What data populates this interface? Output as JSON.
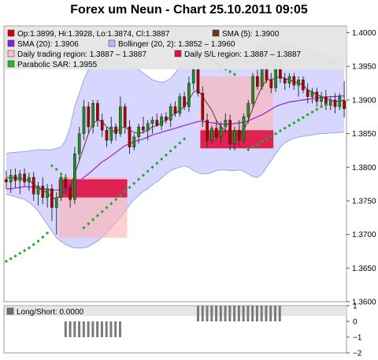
{
  "chart_data": [
    {
      "type": "candlestick",
      "title": "Forex um Neun - Chart 25.10.2011 09:05",
      "ylim": [
        1.36,
        1.401
      ],
      "y_ticks": [
        "1.4000",
        "1.3950",
        "1.3900",
        "1.3850",
        "1.3800",
        "1.3750",
        "1.3700",
        "1.3650",
        "1.3600"
      ],
      "y_tick_values": [
        1.4,
        1.395,
        1.39,
        1.385,
        1.38,
        1.375,
        1.37,
        1.365,
        1.36
      ],
      "grid": false,
      "legend_position": "top",
      "legend": [
        {
          "label": "Op:1.3899, Hi:1.3928, Lo:1.3874, Cl:1.3887",
          "color": "#cc0000",
          "kind": "box"
        },
        {
          "label": "SMA (5): 1.3900",
          "color": "#6b3a1f",
          "kind": "box"
        },
        {
          "label": "SMA (20): 1.3906",
          "color": "#8a1fd0",
          "kind": "box"
        },
        {
          "label": "Bollinger (20, 2): 1.3852 – 1.3960",
          "color": "#b8b8ff",
          "kind": "box"
        },
        {
          "label": "Daily trading region: 1.3887 – 1.3887",
          "color": "#ffc0c0",
          "kind": "box"
        },
        {
          "label": "Daily S/L region: 1.3887 – 1.3887",
          "color": "#dd1144",
          "kind": "box"
        },
        {
          "label": "Parabolic SAR: 1.3955",
          "color": "#22bb22",
          "kind": "box"
        }
      ],
      "candles": [
        {
          "o": 1.3782,
          "h": 1.3795,
          "l": 1.3768,
          "c": 1.3778
        },
        {
          "o": 1.3778,
          "h": 1.3797,
          "l": 1.3762,
          "c": 1.3788
        },
        {
          "o": 1.3788,
          "h": 1.3798,
          "l": 1.377,
          "c": 1.378
        },
        {
          "o": 1.378,
          "h": 1.3796,
          "l": 1.376,
          "c": 1.379
        },
        {
          "o": 1.379,
          "h": 1.3798,
          "l": 1.3772,
          "c": 1.3778
        },
        {
          "o": 1.3778,
          "h": 1.3792,
          "l": 1.3765,
          "c": 1.3785
        },
        {
          "o": 1.3785,
          "h": 1.3793,
          "l": 1.375,
          "c": 1.376
        },
        {
          "o": 1.376,
          "h": 1.3778,
          "l": 1.3743,
          "c": 1.3772
        },
        {
          "o": 1.3772,
          "h": 1.3785,
          "l": 1.3745,
          "c": 1.3755
        },
        {
          "o": 1.3755,
          "h": 1.3775,
          "l": 1.374,
          "c": 1.3768
        },
        {
          "o": 1.3768,
          "h": 1.3775,
          "l": 1.372,
          "c": 1.374
        },
        {
          "o": 1.374,
          "h": 1.3763,
          "l": 1.37,
          "c": 1.3755
        },
        {
          "o": 1.3755,
          "h": 1.379,
          "l": 1.375,
          "c": 1.3785
        },
        {
          "o": 1.3785,
          "h": 1.379,
          "l": 1.376,
          "c": 1.377
        },
        {
          "o": 1.377,
          "h": 1.3775,
          "l": 1.374,
          "c": 1.3752
        },
        {
          "o": 1.3752,
          "h": 1.383,
          "l": 1.3745,
          "c": 1.382
        },
        {
          "o": 1.382,
          "h": 1.386,
          "l": 1.381,
          "c": 1.385
        },
        {
          "o": 1.385,
          "h": 1.39,
          "l": 1.384,
          "c": 1.389
        },
        {
          "o": 1.389,
          "h": 1.3897,
          "l": 1.385,
          "c": 1.386
        },
        {
          "o": 1.386,
          "h": 1.39,
          "l": 1.385,
          "c": 1.3895
        },
        {
          "o": 1.3895,
          "h": 1.39,
          "l": 1.386,
          "c": 1.387
        },
        {
          "o": 1.387,
          "h": 1.388,
          "l": 1.3845,
          "c": 1.3855
        },
        {
          "o": 1.3855,
          "h": 1.386,
          "l": 1.383,
          "c": 1.384
        },
        {
          "o": 1.384,
          "h": 1.3875,
          "l": 1.3835,
          "c": 1.386
        },
        {
          "o": 1.386,
          "h": 1.3865,
          "l": 1.384,
          "c": 1.385
        },
        {
          "o": 1.385,
          "h": 1.3905,
          "l": 1.3845,
          "c": 1.389
        },
        {
          "o": 1.389,
          "h": 1.3895,
          "l": 1.385,
          "c": 1.386
        },
        {
          "o": 1.386,
          "h": 1.387,
          "l": 1.382,
          "c": 1.383
        },
        {
          "o": 1.383,
          "h": 1.385,
          "l": 1.3825,
          "c": 1.3845
        },
        {
          "o": 1.3845,
          "h": 1.3865,
          "l": 1.3835,
          "c": 1.386
        },
        {
          "o": 1.386,
          "h": 1.3875,
          "l": 1.385,
          "c": 1.3855
        },
        {
          "o": 1.3855,
          "h": 1.387,
          "l": 1.384,
          "c": 1.3865
        },
        {
          "o": 1.3865,
          "h": 1.3875,
          "l": 1.385,
          "c": 1.387
        },
        {
          "o": 1.387,
          "h": 1.388,
          "l": 1.386,
          "c": 1.3862
        },
        {
          "o": 1.3862,
          "h": 1.388,
          "l": 1.3855,
          "c": 1.3875
        },
        {
          "o": 1.3875,
          "h": 1.3882,
          "l": 1.3865,
          "c": 1.387
        },
        {
          "o": 1.387,
          "h": 1.3895,
          "l": 1.386,
          "c": 1.389
        },
        {
          "o": 1.389,
          "h": 1.3898,
          "l": 1.3875,
          "c": 1.388
        },
        {
          "o": 1.388,
          "h": 1.391,
          "l": 1.3875,
          "c": 1.3905
        },
        {
          "o": 1.3905,
          "h": 1.3912,
          "l": 1.3885,
          "c": 1.389
        },
        {
          "o": 1.389,
          "h": 1.3935,
          "l": 1.3882,
          "c": 1.3925
        },
        {
          "o": 1.3925,
          "h": 1.395,
          "l": 1.3915,
          "c": 1.3945
        },
        {
          "o": 1.3945,
          "h": 1.395,
          "l": 1.3905,
          "c": 1.391
        },
        {
          "o": 1.391,
          "h": 1.392,
          "l": 1.386,
          "c": 1.387
        },
        {
          "o": 1.387,
          "h": 1.388,
          "l": 1.383,
          "c": 1.384
        },
        {
          "o": 1.384,
          "h": 1.3862,
          "l": 1.3835,
          "c": 1.3858
        },
        {
          "o": 1.3858,
          "h": 1.387,
          "l": 1.384,
          "c": 1.3845
        },
        {
          "o": 1.3845,
          "h": 1.3868,
          "l": 1.3835,
          "c": 1.386
        },
        {
          "o": 1.386,
          "h": 1.388,
          "l": 1.385,
          "c": 1.387
        },
        {
          "o": 1.387,
          "h": 1.3878,
          "l": 1.3825,
          "c": 1.3835
        },
        {
          "o": 1.3835,
          "h": 1.386,
          "l": 1.3825,
          "c": 1.3855
        },
        {
          "o": 1.3855,
          "h": 1.387,
          "l": 1.3832,
          "c": 1.384
        },
        {
          "o": 1.384,
          "h": 1.388,
          "l": 1.3835,
          "c": 1.3875
        },
        {
          "o": 1.3875,
          "h": 1.39,
          "l": 1.3865,
          "c": 1.3895
        },
        {
          "o": 1.3895,
          "h": 1.394,
          "l": 1.389,
          "c": 1.3935
        },
        {
          "o": 1.3935,
          "h": 1.3945,
          "l": 1.3915,
          "c": 1.392
        },
        {
          "o": 1.392,
          "h": 1.395,
          "l": 1.3915,
          "c": 1.3945
        },
        {
          "o": 1.3945,
          "h": 1.3955,
          "l": 1.3925,
          "c": 1.393
        },
        {
          "o": 1.393,
          "h": 1.394,
          "l": 1.391,
          "c": 1.3918
        },
        {
          "o": 1.3918,
          "h": 1.3955,
          "l": 1.3912,
          "c": 1.3948
        },
        {
          "o": 1.3948,
          "h": 1.396,
          "l": 1.3925,
          "c": 1.3932
        },
        {
          "o": 1.3932,
          "h": 1.394,
          "l": 1.3915,
          "c": 1.3925
        },
        {
          "o": 1.3925,
          "h": 1.394,
          "l": 1.3918,
          "c": 1.3935
        },
        {
          "o": 1.3935,
          "h": 1.394,
          "l": 1.3915,
          "c": 1.3922
        },
        {
          "o": 1.3922,
          "h": 1.3935,
          "l": 1.3905,
          "c": 1.393
        },
        {
          "o": 1.393,
          "h": 1.3935,
          "l": 1.391,
          "c": 1.3915
        },
        {
          "o": 1.3915,
          "h": 1.3925,
          "l": 1.3895,
          "c": 1.3905
        },
        {
          "o": 1.3905,
          "h": 1.3918,
          "l": 1.3895,
          "c": 1.3912
        },
        {
          "o": 1.3912,
          "h": 1.3918,
          "l": 1.389,
          "c": 1.3898
        },
        {
          "o": 1.3898,
          "h": 1.3912,
          "l": 1.389,
          "c": 1.3905
        },
        {
          "o": 1.3905,
          "h": 1.3915,
          "l": 1.3885,
          "c": 1.3892
        },
        {
          "o": 1.3892,
          "h": 1.3905,
          "l": 1.3885,
          "c": 1.39
        },
        {
          "o": 1.39,
          "h": 1.391,
          "l": 1.388,
          "c": 1.389
        },
        {
          "o": 1.389,
          "h": 1.391,
          "l": 1.3885,
          "c": 1.3905
        },
        {
          "o": 1.3899,
          "h": 1.3928,
          "l": 1.3874,
          "c": 1.3887
        }
      ],
      "sma5": [
        1.3785,
        1.3784,
        1.3784,
        1.3783,
        1.3782,
        1.378,
        1.3775,
        1.377,
        1.3765,
        1.3762,
        1.3755,
        1.3752,
        1.376,
        1.3765,
        1.3768,
        1.379,
        1.381,
        1.383,
        1.385,
        1.3865,
        1.387,
        1.3868,
        1.386,
        1.3855,
        1.3852,
        1.3858,
        1.386,
        1.3855,
        1.3852,
        1.385,
        1.3852,
        1.3855,
        1.386,
        1.3862,
        1.3866,
        1.387,
        1.3875,
        1.388,
        1.3885,
        1.389,
        1.39,
        1.3912,
        1.3915,
        1.3905,
        1.3895,
        1.3885,
        1.387,
        1.386,
        1.3855,
        1.3852,
        1.385,
        1.3848,
        1.3855,
        1.387,
        1.3888,
        1.3905,
        1.392,
        1.393,
        1.393,
        1.3933,
        1.3935,
        1.3932,
        1.393,
        1.3927,
        1.3925,
        1.3922,
        1.3915,
        1.3912,
        1.3908,
        1.3905,
        1.3902,
        1.39,
        1.3898,
        1.3898,
        1.39
      ],
      "sma20": [
        1.3768,
        1.3768,
        1.3769,
        1.377,
        1.3771,
        1.3771,
        1.377,
        1.3769,
        1.3768,
        1.3767,
        1.3766,
        1.3766,
        1.3767,
        1.3768,
        1.377,
        1.3774,
        1.3779,
        1.3785,
        1.379,
        1.3796,
        1.3802,
        1.3808,
        1.3812,
        1.3817,
        1.3822,
        1.3827,
        1.3832,
        1.3835,
        1.3838,
        1.384,
        1.3842,
        1.3845,
        1.3848,
        1.385,
        1.3852,
        1.3854,
        1.3856,
        1.3858,
        1.386,
        1.3862,
        1.3864,
        1.3866,
        1.3868,
        1.3868,
        1.3867,
        1.3866,
        1.3865,
        1.3864,
        1.3864,
        1.3864,
        1.3865,
        1.3866,
        1.3867,
        1.3869,
        1.3872,
        1.3875,
        1.3878,
        1.3882,
        1.3886,
        1.389,
        1.3893,
        1.3895,
        1.3897,
        1.3898,
        1.3899,
        1.39,
        1.3901,
        1.3902,
        1.3903,
        1.3904,
        1.3904,
        1.3905,
        1.3905,
        1.3906,
        1.3906
      ],
      "boll_upper": [
        1.382,
        1.3822,
        1.3822,
        1.3823,
        1.3823,
        1.3824,
        1.3825,
        1.3826,
        1.3826,
        1.3826,
        1.3826,
        1.3828,
        1.383,
        1.384,
        1.386,
        1.389,
        1.391,
        1.393,
        1.3945,
        1.3955,
        1.396,
        1.3962,
        1.3962,
        1.396,
        1.3958,
        1.3956,
        1.3955,
        1.3952,
        1.395,
        1.3945,
        1.394,
        1.3935,
        1.393,
        1.3928,
        1.3926,
        1.3928,
        1.3932,
        1.394,
        1.395,
        1.3958,
        1.3966,
        1.3975,
        1.3985,
        1.3985,
        1.398,
        1.3975,
        1.3972,
        1.397,
        1.3968,
        1.3965,
        1.3962,
        1.396,
        1.3962,
        1.3966,
        1.3972,
        1.3978,
        1.3983,
        1.3986,
        1.3988,
        1.3988,
        1.3986,
        1.3984,
        1.3982,
        1.398,
        1.3978,
        1.3976,
        1.3974,
        1.3972,
        1.397,
        1.3968,
        1.3966,
        1.3964,
        1.3962,
        1.3961,
        1.396
      ],
      "boll_lower": [
        1.376,
        1.3758,
        1.3756,
        1.3754,
        1.3752,
        1.3748,
        1.3742,
        1.3735,
        1.3725,
        1.3715,
        1.3705,
        1.3695,
        1.369,
        1.3685,
        1.3682,
        1.368,
        1.368,
        1.368,
        1.3682,
        1.3686,
        1.369,
        1.3696,
        1.3702,
        1.371,
        1.3718,
        1.3726,
        1.3734,
        1.3744,
        1.3752,
        1.3758,
        1.3764,
        1.3768,
        1.3774,
        1.3778,
        1.3784,
        1.379,
        1.3795,
        1.3798,
        1.38,
        1.3802,
        1.38,
        1.3795,
        1.3792,
        1.379,
        1.379,
        1.3792,
        1.3795,
        1.3796,
        1.3796,
        1.3795,
        1.3795,
        1.3796,
        1.3794,
        1.379,
        1.3786,
        1.3785,
        1.379,
        1.38,
        1.381,
        1.382,
        1.383,
        1.3836,
        1.384,
        1.3843,
        1.3845,
        1.3846,
        1.3847,
        1.3848,
        1.3849,
        1.385,
        1.385,
        1.3851,
        1.3851,
        1.3852,
        1.3852
      ],
      "sar_points": [
        {
          "i": 0,
          "v": 1.366
        },
        {
          "i": 1,
          "v": 1.3664
        },
        {
          "i": 2,
          "v": 1.3668
        },
        {
          "i": 3,
          "v": 1.3672
        },
        {
          "i": 4,
          "v": 1.3676
        },
        {
          "i": 5,
          "v": 1.368
        },
        {
          "i": 6,
          "v": 1.3685
        },
        {
          "i": 7,
          "v": 1.369
        },
        {
          "i": 8,
          "v": 1.3696
        },
        {
          "i": 9,
          "v": 1.3702
        },
        {
          "i": 10,
          "v": 1.3802
        },
        {
          "i": 11,
          "v": 1.3797
        },
        {
          "i": 12,
          "v": 1.379
        },
        {
          "i": 13,
          "v": 1.3784
        },
        {
          "i": 17,
          "v": 1.371
        },
        {
          "i": 18,
          "v": 1.3716
        },
        {
          "i": 19,
          "v": 1.3722
        },
        {
          "i": 20,
          "v": 1.3728
        },
        {
          "i": 21,
          "v": 1.3734
        },
        {
          "i": 22,
          "v": 1.374
        },
        {
          "i": 23,
          "v": 1.3746
        },
        {
          "i": 24,
          "v": 1.3752
        },
        {
          "i": 25,
          "v": 1.3758
        },
        {
          "i": 26,
          "v": 1.3764
        },
        {
          "i": 27,
          "v": 1.377
        },
        {
          "i": 28,
          "v": 1.3776
        },
        {
          "i": 29,
          "v": 1.3782
        },
        {
          "i": 30,
          "v": 1.3788
        },
        {
          "i": 31,
          "v": 1.3794
        },
        {
          "i": 32,
          "v": 1.38
        },
        {
          "i": 33,
          "v": 1.3806
        },
        {
          "i": 34,
          "v": 1.3812
        },
        {
          "i": 35,
          "v": 1.3818
        },
        {
          "i": 36,
          "v": 1.3824
        },
        {
          "i": 37,
          "v": 1.383
        },
        {
          "i": 38,
          "v": 1.3836
        },
        {
          "i": 39,
          "v": 1.3842
        },
        {
          "i": 44,
          "v": 1.3962
        },
        {
          "i": 45,
          "v": 1.3958
        },
        {
          "i": 46,
          "v": 1.3954
        },
        {
          "i": 47,
          "v": 1.395
        },
        {
          "i": 48,
          "v": 1.3946
        },
        {
          "i": 49,
          "v": 1.3942
        },
        {
          "i": 50,
          "v": 1.3938
        },
        {
          "i": 53,
          "v": 1.3826
        },
        {
          "i": 54,
          "v": 1.383
        },
        {
          "i": 55,
          "v": 1.3834
        },
        {
          "i": 56,
          "v": 1.3838
        },
        {
          "i": 57,
          "v": 1.3842
        },
        {
          "i": 58,
          "v": 1.3846
        },
        {
          "i": 59,
          "v": 1.385
        },
        {
          "i": 60,
          "v": 1.3854
        },
        {
          "i": 61,
          "v": 1.3858
        },
        {
          "i": 62,
          "v": 1.3862
        },
        {
          "i": 63,
          "v": 1.3866
        },
        {
          "i": 64,
          "v": 1.387
        },
        {
          "i": 65,
          "v": 1.3874
        },
        {
          "i": 66,
          "v": 1.3878
        },
        {
          "i": 67,
          "v": 1.3882
        },
        {
          "i": 68,
          "v": 1.3886
        },
        {
          "i": 69,
          "v": 1.389
        },
        {
          "i": 70,
          "v": 1.3893
        },
        {
          "i": 71,
          "v": 1.3955
        }
      ],
      "trading_regions": [
        {
          "from": 12,
          "to": 26,
          "low": 1.3695,
          "high": 1.3785
        },
        {
          "from": 43,
          "to": 58,
          "low": 1.383,
          "high": 1.3935
        }
      ],
      "sl_regions": [
        {
          "from": 12,
          "to": 26,
          "low": 1.3755,
          "high": 1.3782
        },
        {
          "from": 43,
          "to": 58,
          "low": 1.3828,
          "high": 1.3855
        }
      ],
      "colors": {
        "bull": "#228b22",
        "bear": "#b00000",
        "sma5": "#6b3a1f",
        "sma20": "#9a1fe0",
        "boll_fill": "#c8c8ff",
        "boll_line": "#a0a0f0",
        "trading_region": "#ffb0b0",
        "sl_region": "#dd1144",
        "sar": "#22aa22",
        "legend_bg": "#e4e4e4"
      }
    },
    {
      "type": "bar",
      "legend": [
        {
          "label": "Long/Short: 0.0000",
          "color": "#707070",
          "kind": "box"
        }
      ],
      "ylim": [
        -2,
        1
      ],
      "y_ticks": [
        "1",
        "0",
        "−1",
        "−2"
      ],
      "y_tick_values": [
        1,
        0,
        -1,
        -2
      ],
      "groups": [
        {
          "count": 13,
          "value": -1
        },
        {
          "count": 19,
          "value": 1
        }
      ],
      "color": "#7a7a7a"
    }
  ]
}
